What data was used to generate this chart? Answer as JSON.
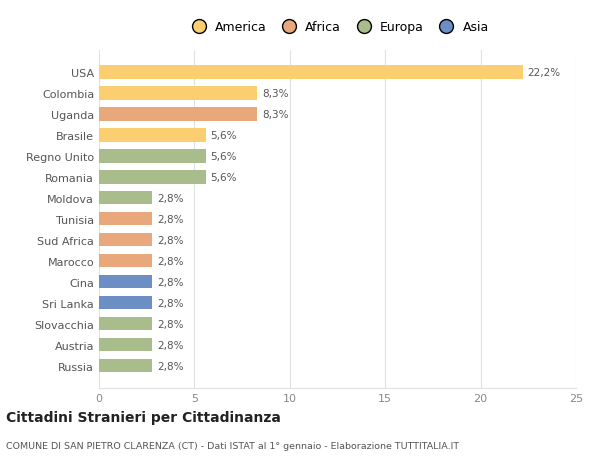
{
  "countries": [
    "USA",
    "Colombia",
    "Uganda",
    "Brasile",
    "Regno Unito",
    "Romania",
    "Moldova",
    "Tunisia",
    "Sud Africa",
    "Marocco",
    "Cina",
    "Sri Lanka",
    "Slovacchia",
    "Austria",
    "Russia"
  ],
  "values": [
    22.2,
    8.3,
    8.3,
    5.6,
    5.6,
    5.6,
    2.8,
    2.8,
    2.8,
    2.8,
    2.8,
    2.8,
    2.8,
    2.8,
    2.8
  ],
  "labels": [
    "22,2%",
    "8,3%",
    "8,3%",
    "5,6%",
    "5,6%",
    "5,6%",
    "2,8%",
    "2,8%",
    "2,8%",
    "2,8%",
    "2,8%",
    "2,8%",
    "2,8%",
    "2,8%",
    "2,8%"
  ],
  "colors": [
    "#FBCF6F",
    "#FBCF6F",
    "#E8A87C",
    "#FBCF6F",
    "#A8BC8C",
    "#A8BC8C",
    "#A8BC8C",
    "#E8A87C",
    "#E8A87C",
    "#E8A87C",
    "#6B8EC4",
    "#6B8EC4",
    "#A8BC8C",
    "#A8BC8C",
    "#A8BC8C"
  ],
  "legend": [
    {
      "label": "America",
      "color": "#FBCF6F"
    },
    {
      "label": "Africa",
      "color": "#E8A87C"
    },
    {
      "label": "Europa",
      "color": "#A8BC8C"
    },
    {
      "label": "Asia",
      "color": "#6B8EC4"
    }
  ],
  "xlim": [
    0,
    25
  ],
  "xticks": [
    0,
    5,
    10,
    15,
    20,
    25
  ],
  "title": "Cittadini Stranieri per Cittadinanza",
  "subtitle": "COMUNE DI SAN PIETRO CLARENZA (CT) - Dati ISTAT al 1° gennaio - Elaborazione TUTTITALIA.IT",
  "background_color": "#FFFFFF",
  "grid_color": "#E0E0E0"
}
